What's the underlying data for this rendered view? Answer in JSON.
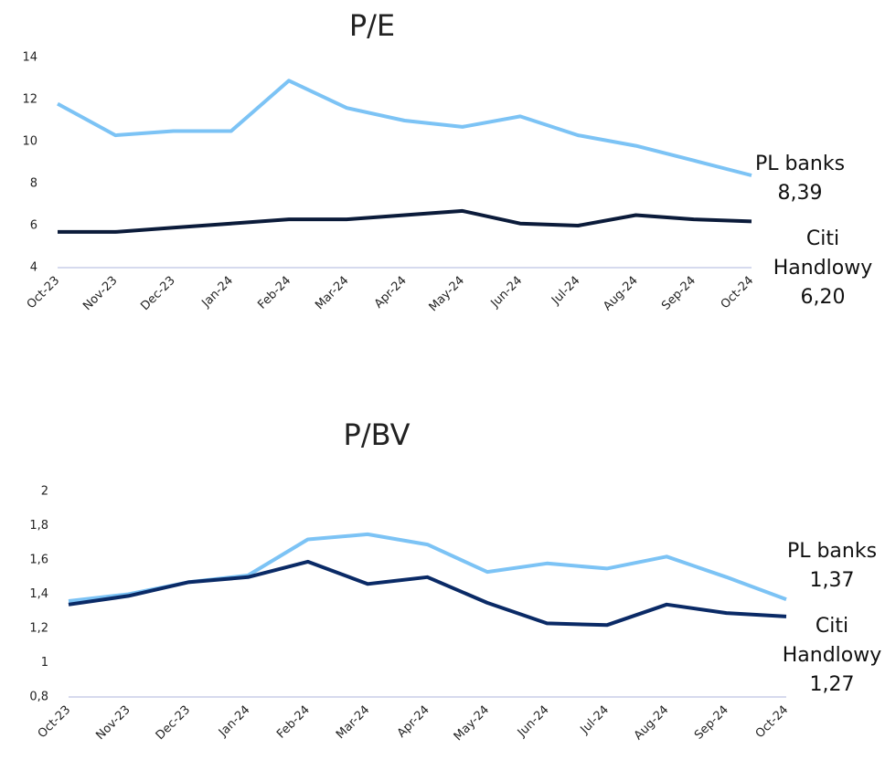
{
  "chart_data": [
    {
      "type": "line",
      "title": "P/E",
      "categories": [
        "Oct-23",
        "Nov-23",
        "Dec-23",
        "Jan-24",
        "Feb-24",
        "Mar-24",
        "Apr-24",
        "May-24",
        "Jun-24",
        "Jul-24",
        "Aug-24",
        "Sep-24",
        "Oct-24"
      ],
      "series": [
        {
          "name": "PL banks",
          "color": "#7cc3f5",
          "values": [
            11.8,
            10.3,
            10.5,
            10.5,
            12.9,
            11.6,
            11.0,
            10.7,
            11.2,
            10.3,
            9.8,
            9.1,
            8.39
          ],
          "value_labels": [
            null,
            null,
            null,
            null,
            null,
            null,
            null,
            null,
            null,
            null,
            null,
            null,
            "8,39"
          ]
        },
        {
          "name": "Citi Handlowy",
          "color": "#0b1b3a",
          "values": [
            5.7,
            5.7,
            5.9,
            6.1,
            6.3,
            6.3,
            6.5,
            6.7,
            6.1,
            6.0,
            6.5,
            6.3,
            6.2
          ],
          "value_labels": [
            null,
            null,
            null,
            null,
            null,
            null,
            null,
            null,
            null,
            null,
            null,
            null,
            "6,20"
          ]
        }
      ],
      "ylim": [
        4,
        14
      ],
      "yticks": [
        4,
        6,
        8,
        10,
        12,
        14
      ]
    },
    {
      "type": "line",
      "title": "P/BV",
      "categories": [
        "Oct-23",
        "Nov-23",
        "Dec-23",
        "Jan-24",
        "Feb-24",
        "Mar-24",
        "Apr-24",
        "May-24",
        "Jun-24",
        "Jul-24",
        "Aug-24",
        "Sep-24",
        "Oct-24"
      ],
      "series": [
        {
          "name": "PL banks",
          "color": "#7cc3f5",
          "values": [
            1.36,
            1.4,
            1.47,
            1.51,
            1.72,
            1.75,
            1.69,
            1.53,
            1.58,
            1.55,
            1.62,
            1.5,
            1.37
          ],
          "value_labels": [
            null,
            null,
            null,
            null,
            null,
            null,
            null,
            null,
            null,
            null,
            null,
            null,
            "1,37"
          ]
        },
        {
          "name": "Citi Handlowy",
          "color": "#0a2a66",
          "values": [
            1.34,
            1.39,
            1.47,
            1.5,
            1.59,
            1.46,
            1.5,
            1.35,
            1.23,
            1.22,
            1.34,
            1.29,
            1.27
          ],
          "value_labels": [
            null,
            null,
            null,
            null,
            null,
            null,
            null,
            null,
            null,
            null,
            null,
            null,
            "1,27"
          ]
        }
      ],
      "ylim": [
        0.8,
        2
      ],
      "yticks": [
        {
          "value": 0.8,
          "label": "0,8"
        },
        1,
        {
          "value": 1.2,
          "label": "1,2"
        },
        {
          "value": 1.4,
          "label": "1,4"
        },
        {
          "value": 1.6,
          "label": "1,6"
        },
        {
          "value": 1.8,
          "label": "1,8"
        },
        2
      ]
    }
  ]
}
